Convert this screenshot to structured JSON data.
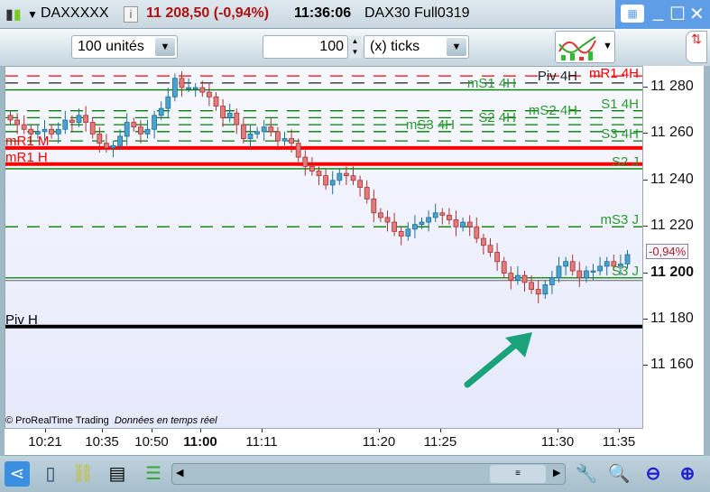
{
  "titlebar": {
    "instrument": "DAXXXXX",
    "price": "11 208,50 (-0,94%)",
    "time": "11:36:06",
    "description": "DAX30 Full0319",
    "price_color": "#b01010"
  },
  "toolbar": {
    "units_value": "100 unités",
    "ticks_count": "100",
    "ticks_unit": "(x) ticks"
  },
  "chart": {
    "y_ticks": [
      11280,
      11260,
      11240,
      11220,
      11200,
      11180,
      11160
    ],
    "y_tick_labels": [
      "11 280",
      "11 260",
      "11 240",
      "11 220",
      "11 200",
      "11 180",
      "11 160"
    ],
    "current_change": "-0,94%",
    "x_ticks": [
      {
        "label": "10:21",
        "bold": false
      },
      {
        "label": "10:35",
        "bold": false
      },
      {
        "label": "10:50",
        "bold": false
      },
      {
        "label": "11:00",
        "bold": true
      },
      {
        "label": "11:11",
        "bold": false
      },
      {
        "label": "11:20",
        "bold": false
      },
      {
        "label": "11:25",
        "bold": false
      },
      {
        "label": "11:30",
        "bold": false
      },
      {
        "label": "11:35",
        "bold": false
      }
    ],
    "copyright": "© ProRealTime Trading",
    "realtime_note": "Données en temps réel",
    "levels": [
      {
        "label": "mR1 4H",
        "price": 11285,
        "color": "#ff0000",
        "style": "dashed",
        "side": "right"
      },
      {
        "label": "Piv 4H",
        "price": 11282,
        "color": "#222222",
        "style": "dashed",
        "side": "right"
      },
      {
        "label": "mS1 4H",
        "price": 11279,
        "color": "#008000",
        "style": "solid",
        "side": "right"
      },
      {
        "label": "S1 4H",
        "price": 11270,
        "color": "#008000",
        "style": "dashed",
        "side": "right"
      },
      {
        "label": "mS2 4H",
        "price": 11267,
        "color": "#008000",
        "style": "dashed",
        "side": "right"
      },
      {
        "label": "S2 4H",
        "price": 11264,
        "color": "#008000",
        "style": "dashed",
        "side": "right"
      },
      {
        "label": "mS3 4H",
        "price": 11261,
        "color": "#008000",
        "style": "dashed",
        "side": "right"
      },
      {
        "label": "S3 4H",
        "price": 11257,
        "color": "#008000",
        "style": "dashed",
        "side": "right"
      },
      {
        "label": "mR1 M",
        "price": 11254,
        "color": "#ff0000",
        "style": "thick",
        "side": "left"
      },
      {
        "label": "mR1 H",
        "price": 11247,
        "color": "#ff0000",
        "style": "thick",
        "side": "left"
      },
      {
        "label": "S2 J",
        "price": 11245,
        "color": "#008000",
        "style": "solid",
        "side": "right"
      },
      {
        "label": "mS3 J",
        "price": 11220,
        "color": "#008000",
        "style": "dashed",
        "side": "right"
      },
      {
        "label": "S3 J",
        "price": 11198,
        "color": "#008000",
        "style": "solid",
        "side": "right"
      },
      {
        "label": "Piv H",
        "price": 11177,
        "color": "#000000",
        "style": "thick",
        "side": "left"
      }
    ],
    "closes": [
      11266,
      11264,
      11262,
      11260,
      11261,
      11262,
      11260,
      11262,
      11266,
      11265,
      11268,
      11265,
      11260,
      11256,
      11254,
      11255,
      11259,
      11265,
      11263,
      11260,
      11262,
      11268,
      11271,
      11276,
      11284,
      11280,
      11280,
      11280,
      11278,
      11276,
      11272,
      11267,
      11269,
      11264,
      11258,
      11260,
      11261,
      11263,
      11261,
      11257,
      11258,
      11256,
      11250,
      11246,
      11244,
      11242,
      11238,
      11240,
      11243,
      11242,
      11240,
      11237,
      11232,
      11226,
      11224,
      11222,
      11218,
      11216,
      11219,
      11221,
      11222,
      11224,
      11226,
      11225,
      11223,
      11220,
      11222,
      11220,
      11215,
      11212,
      11209,
      11205,
      11200,
      11197,
      11199,
      11196,
      11193,
      11191,
      11195,
      11198,
      11203,
      11205,
      11201,
      11198,
      11201,
      11201,
      11203,
      11205,
      11203,
      11204,
      11208
    ],
    "up_color": "#4aa3cf",
    "down_color": "#e07c7c"
  },
  "icons": [
    "candlestick-icon",
    "info-icon",
    "keyboard-icon",
    "minimize-icon",
    "maximize-icon",
    "close-icon",
    "indicators-icon",
    "share-icon",
    "layout-icon",
    "link-icon",
    "drawing-icon",
    "orderbook-icon",
    "settings-icon",
    "zoom-fit-icon",
    "zoom-out-icon",
    "zoom-in-icon"
  ]
}
